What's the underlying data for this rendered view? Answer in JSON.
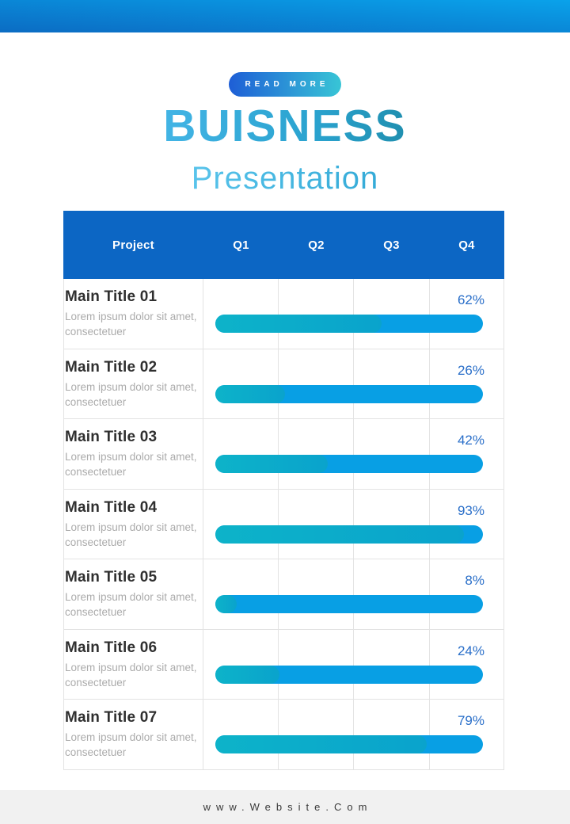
{
  "header": {
    "button_label": "READ MORE",
    "title": "BUISNESS",
    "subtitle": "Presentation"
  },
  "table": {
    "columns": [
      "Project",
      "Q1",
      "Q2",
      "Q3",
      "Q4"
    ],
    "rows": [
      {
        "title": "Main Title 01",
        "description": "Lorem ipsum dolor sit amet, consectetuer",
        "percent": "62%",
        "value": 62
      },
      {
        "title": "Main Title 02",
        "description": "Lorem ipsum dolor sit amet, consectetuer",
        "percent": "26%",
        "value": 26
      },
      {
        "title": "Main Title 03",
        "description": "Lorem ipsum dolor sit amet, consectetuer",
        "percent": "42%",
        "value": 42
      },
      {
        "title": "Main Title 04",
        "description": "Lorem ipsum dolor sit amet, consectetuer",
        "percent": "93%",
        "value": 93
      },
      {
        "title": "Main Title 05",
        "description": "Lorem ipsum dolor sit amet, consectetuer",
        "percent": "8%",
        "value": 8
      },
      {
        "title": "Main Title 06",
        "description": "Lorem ipsum dolor sit amet, consectetuer",
        "percent": "24%",
        "value": 24
      },
      {
        "title": "Main Title 07",
        "description": "Lorem ipsum dolor sit amet, consectetuer",
        "percent": "79%",
        "value": 79
      }
    ]
  },
  "chart_data": {
    "type": "bar",
    "orientation": "horizontal",
    "categories": [
      "Main Title 01",
      "Main Title 02",
      "Main Title 03",
      "Main Title 04",
      "Main Title 05",
      "Main Title 06",
      "Main Title 07"
    ],
    "values": [
      62,
      26,
      42,
      93,
      8,
      24,
      79
    ],
    "unit": "%",
    "title": "BUISNESS Presentation",
    "column_headers": [
      "Project",
      "Q1",
      "Q2",
      "Q3",
      "Q4"
    ],
    "xlim": [
      0,
      100
    ],
    "grid": true
  },
  "footer": {
    "website": "www.Website.Com"
  },
  "colors": {
    "header_blue": "#0c66c4",
    "track_blue": "#089fe4",
    "fill_teal": "#0caac6",
    "percent_blue": "#2a6fc9",
    "topbar_gradient_start": "#0b6cc3",
    "topbar_gradient_end": "#0aa2ea",
    "button_gradient_start": "#1e5ed6",
    "button_gradient_end": "#38c5d6",
    "title_gradient_start": "#4cbbee",
    "title_gradient_end": "#177e95"
  }
}
